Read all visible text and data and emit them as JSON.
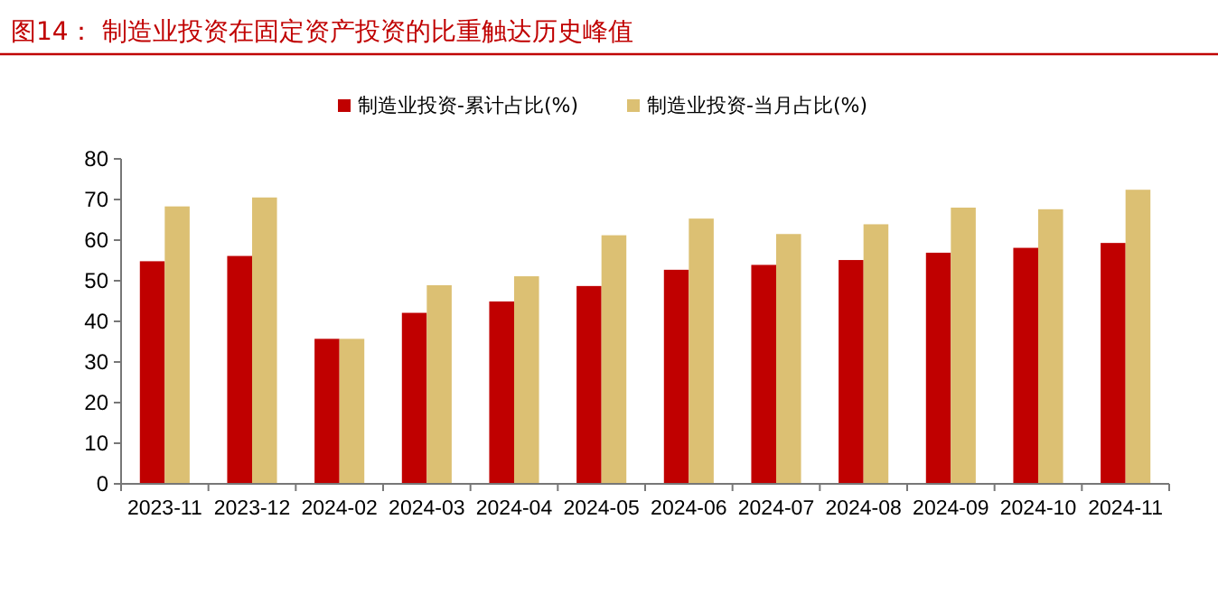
{
  "chart_data": {
    "type": "bar",
    "title": "图14：  制造业投资在固定资产投资的比重触达历史峰值",
    "categories": [
      "2023-11",
      "2023-12",
      "2024-02",
      "2024-03",
      "2024-04",
      "2024-05",
      "2024-06",
      "2024-07",
      "2024-08",
      "2024-09",
      "2024-10",
      "2024-11"
    ],
    "series": [
      {
        "name": "制造业投资-累计占比(%)",
        "color": "#c00000",
        "values": [
          54.8,
          56.1,
          35.7,
          42.1,
          44.9,
          48.7,
          52.7,
          53.9,
          55.1,
          56.9,
          58.1,
          59.3
        ]
      },
      {
        "name": "制造业投资-当月占比(%)",
        "color": "#dcc073",
        "values": [
          68.3,
          70.5,
          35.7,
          48.9,
          51.1,
          61.2,
          65.3,
          61.5,
          63.9,
          68.0,
          67.6,
          72.4
        ]
      }
    ],
    "ylim": [
      0,
      80
    ],
    "yticks": [
      0,
      10,
      20,
      30,
      40,
      50,
      60,
      70,
      80
    ],
    "grid": false,
    "legend": "top"
  }
}
